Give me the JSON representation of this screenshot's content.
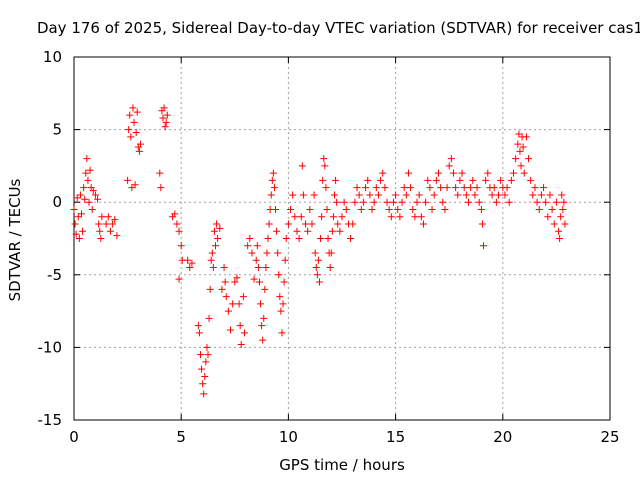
{
  "chart_data": {
    "type": "scatter",
    "title": "Day 176 of 2025, Sidereal Day-to-day VTEC variation (SDTVAR) for receiver cas1",
    "xlabel": "GPS time / hours",
    "ylabel": "SDTVAR / TECUs",
    "xlim": [
      0,
      25
    ],
    "ylim": [
      -15,
      10
    ],
    "xticks": [
      0,
      5,
      10,
      15,
      20,
      25
    ],
    "yticks": [
      -15,
      -10,
      -5,
      0,
      5,
      10
    ],
    "xtick_labels": [
      "0",
      "5",
      "10",
      "15",
      "20",
      "25"
    ],
    "ytick_labels": [
      "-15",
      "-10",
      "-5",
      "0",
      "5",
      "10"
    ],
    "grid": true,
    "marker": "+",
    "series": [
      {
        "name": "SDTVAR",
        "color": "#ff0000",
        "points": [
          [
            0.0,
            -0.5
          ],
          [
            0.05,
            -1.5
          ],
          [
            0.1,
            -2.2
          ],
          [
            0.15,
            0.3
          ],
          [
            0.2,
            -1.0
          ],
          [
            0.25,
            -2.5
          ],
          [
            0.3,
            0.5
          ],
          [
            0.35,
            -0.8
          ],
          [
            0.4,
            -2.0
          ],
          [
            0.45,
            1.0
          ],
          [
            0.5,
            0.2
          ],
          [
            0.55,
            2.0
          ],
          [
            0.6,
            3.0
          ],
          [
            0.65,
            1.5
          ],
          [
            0.7,
            0.0
          ],
          [
            0.75,
            2.2
          ],
          [
            0.8,
            1.0
          ],
          [
            0.85,
            -0.5
          ],
          [
            0.9,
            0.8
          ],
          [
            1.0,
            0.5
          ],
          [
            1.1,
            0.2
          ],
          [
            1.15,
            -1.5
          ],
          [
            1.2,
            -2.0
          ],
          [
            1.25,
            -2.5
          ],
          [
            1.3,
            -1.0
          ],
          [
            1.5,
            -1.5
          ],
          [
            1.6,
            -1.0
          ],
          [
            1.7,
            -2.0
          ],
          [
            1.8,
            -1.5
          ],
          [
            1.9,
            -1.2
          ],
          [
            2.0,
            -2.3
          ],
          [
            2.5,
            1.5
          ],
          [
            2.55,
            5.0
          ],
          [
            2.6,
            6.0
          ],
          [
            2.65,
            4.5
          ],
          [
            2.7,
            1.0
          ],
          [
            2.75,
            6.5
          ],
          [
            2.8,
            5.5
          ],
          [
            2.85,
            1.2
          ],
          [
            2.9,
            4.8
          ],
          [
            2.95,
            6.2
          ],
          [
            3.0,
            3.8
          ],
          [
            3.05,
            3.5
          ],
          [
            3.1,
            4.0
          ],
          [
            4.0,
            2.0
          ],
          [
            4.05,
            1.0
          ],
          [
            4.1,
            6.3
          ],
          [
            4.15,
            5.8
          ],
          [
            4.2,
            6.5
          ],
          [
            4.25,
            5.2
          ],
          [
            4.3,
            5.5
          ],
          [
            4.35,
            6.0
          ],
          [
            4.6,
            -1.0
          ],
          [
            4.7,
            -0.8
          ],
          [
            4.8,
            -1.5
          ],
          [
            4.9,
            -2.0
          ],
          [
            5.0,
            -3.0
          ],
          [
            5.05,
            -4.0
          ],
          [
            4.9,
            -5.3
          ],
          [
            5.3,
            -4.0
          ],
          [
            5.4,
            -4.5
          ],
          [
            5.5,
            -4.2
          ],
          [
            5.8,
            -8.5
          ],
          [
            5.85,
            -9.0
          ],
          [
            5.9,
            -10.5
          ],
          [
            5.95,
            -11.5
          ],
          [
            6.0,
            -12.5
          ],
          [
            6.05,
            -13.2
          ],
          [
            6.1,
            -12.0
          ],
          [
            6.15,
            -11.0
          ],
          [
            6.2,
            -10.0
          ],
          [
            6.25,
            -10.5
          ],
          [
            6.3,
            -8.0
          ],
          [
            6.35,
            -6.0
          ],
          [
            6.4,
            -4.0
          ],
          [
            6.45,
            -3.5
          ],
          [
            6.5,
            -4.5
          ],
          [
            6.55,
            -2.0
          ],
          [
            6.6,
            -3.0
          ],
          [
            6.65,
            -1.5
          ],
          [
            6.7,
            -2.5
          ],
          [
            6.8,
            -1.8
          ],
          [
            6.9,
            -6.0
          ],
          [
            7.0,
            -4.5
          ],
          [
            7.05,
            -5.5
          ],
          [
            7.1,
            -6.5
          ],
          [
            7.2,
            -7.5
          ],
          [
            7.3,
            -8.8
          ],
          [
            7.4,
            -7.0
          ],
          [
            7.5,
            -5.5
          ],
          [
            7.6,
            -5.2
          ],
          [
            7.7,
            -7.0
          ],
          [
            7.75,
            -8.5
          ],
          [
            7.8,
            -9.8
          ],
          [
            7.9,
            -6.5
          ],
          [
            7.95,
            -9.0
          ],
          [
            8.1,
            -3.0
          ],
          [
            8.2,
            -2.5
          ],
          [
            8.3,
            -3.5
          ],
          [
            8.4,
            -5.3
          ],
          [
            8.5,
            -4.0
          ],
          [
            8.55,
            -3.0
          ],
          [
            8.6,
            -4.5
          ],
          [
            8.65,
            -5.5
          ],
          [
            8.7,
            -7.0
          ],
          [
            8.75,
            -8.5
          ],
          [
            8.8,
            -9.5
          ],
          [
            8.85,
            -8.0
          ],
          [
            8.9,
            -6.0
          ],
          [
            8.95,
            -4.5
          ],
          [
            9.0,
            -3.5
          ],
          [
            9.05,
            -2.5
          ],
          [
            9.1,
            -1.5
          ],
          [
            9.15,
            -0.5
          ],
          [
            9.2,
            0.5
          ],
          [
            9.25,
            1.5
          ],
          [
            9.3,
            2.0
          ],
          [
            9.35,
            1.0
          ],
          [
            9.4,
            -0.5
          ],
          [
            9.45,
            -2.0
          ],
          [
            9.5,
            -3.5
          ],
          [
            9.55,
            -5.0
          ],
          [
            9.6,
            -6.5
          ],
          [
            9.65,
            -7.5
          ],
          [
            9.7,
            -9.0
          ],
          [
            9.75,
            -7.0
          ],
          [
            9.8,
            -5.5
          ],
          [
            9.85,
            -4.0
          ],
          [
            9.9,
            -2.5
          ],
          [
            10.0,
            -1.5
          ],
          [
            10.1,
            -0.5
          ],
          [
            10.2,
            0.5
          ],
          [
            10.3,
            -1.0
          ],
          [
            10.4,
            -2.0
          ],
          [
            10.5,
            -2.5
          ],
          [
            10.6,
            -1.0
          ],
          [
            10.65,
            2.5
          ],
          [
            10.7,
            0.5
          ],
          [
            10.8,
            -1.5
          ],
          [
            10.9,
            -2.0
          ],
          [
            11.0,
            -0.5
          ],
          [
            11.1,
            -1.5
          ],
          [
            11.2,
            0.5
          ],
          [
            11.25,
            -3.5
          ],
          [
            11.3,
            -4.5
          ],
          [
            11.35,
            -5.0
          ],
          [
            11.4,
            -4.0
          ],
          [
            11.45,
            -5.5
          ],
          [
            11.5,
            -2.5
          ],
          [
            11.55,
            -1.0
          ],
          [
            11.6,
            1.5
          ],
          [
            11.65,
            3.0
          ],
          [
            11.7,
            2.5
          ],
          [
            11.75,
            1.0
          ],
          [
            11.8,
            -0.5
          ],
          [
            11.85,
            -2.5
          ],
          [
            11.9,
            -3.5
          ],
          [
            11.95,
            -4.5
          ],
          [
            12.0,
            -3.5
          ],
          [
            12.05,
            -2.0
          ],
          [
            12.1,
            -1.0
          ],
          [
            12.15,
            0.5
          ],
          [
            12.2,
            1.5
          ],
          [
            12.25,
            0.0
          ],
          [
            12.3,
            -1.5
          ],
          [
            12.4,
            -2.0
          ],
          [
            12.5,
            -1.0
          ],
          [
            12.6,
            0.0
          ],
          [
            12.7,
            -0.5
          ],
          [
            12.8,
            -1.5
          ],
          [
            12.9,
            -2.5
          ],
          [
            13.0,
            -1.5
          ],
          [
            13.1,
            0.0
          ],
          [
            13.2,
            1.0
          ],
          [
            13.3,
            0.5
          ],
          [
            13.4,
            -0.5
          ],
          [
            13.5,
            0.0
          ],
          [
            13.6,
            1.0
          ],
          [
            13.7,
            1.5
          ],
          [
            13.8,
            0.5
          ],
          [
            13.9,
            -0.5
          ],
          [
            14.0,
            0.0
          ],
          [
            14.1,
            1.0
          ],
          [
            14.2,
            0.5
          ],
          [
            14.3,
            1.5
          ],
          [
            14.4,
            2.0
          ],
          [
            14.5,
            1.0
          ],
          [
            14.6,
            0.0
          ],
          [
            14.7,
            -0.5
          ],
          [
            14.8,
            -1.0
          ],
          [
            14.9,
            0.0
          ],
          [
            15.0,
            0.5
          ],
          [
            15.1,
            -0.5
          ],
          [
            15.2,
            -1.0
          ],
          [
            15.3,
            0.0
          ],
          [
            15.4,
            1.0
          ],
          [
            15.5,
            0.5
          ],
          [
            15.6,
            2.0
          ],
          [
            15.7,
            1.0
          ],
          [
            15.8,
            -0.5
          ],
          [
            15.9,
            -1.0
          ],
          [
            16.0,
            0.0
          ],
          [
            16.1,
            0.5
          ],
          [
            16.2,
            -1.0
          ],
          [
            16.3,
            -1.5
          ],
          [
            16.4,
            0.0
          ],
          [
            16.5,
            1.5
          ],
          [
            16.6,
            1.0
          ],
          [
            16.7,
            -0.5
          ],
          [
            16.8,
            0.5
          ],
          [
            16.9,
            1.5
          ],
          [
            17.0,
            2.0
          ],
          [
            17.1,
            1.0
          ],
          [
            17.2,
            0.0
          ],
          [
            17.3,
            -0.5
          ],
          [
            17.4,
            1.0
          ],
          [
            17.5,
            2.5
          ],
          [
            17.6,
            3.0
          ],
          [
            17.7,
            2.0
          ],
          [
            17.8,
            1.0
          ],
          [
            17.9,
            0.5
          ],
          [
            18.0,
            1.5
          ],
          [
            18.1,
            2.0
          ],
          [
            18.2,
            1.0
          ],
          [
            18.3,
            0.5
          ],
          [
            18.4,
            0.0
          ],
          [
            18.5,
            1.0
          ],
          [
            18.6,
            1.5
          ],
          [
            18.7,
            0.5
          ],
          [
            18.8,
            1.0
          ],
          [
            18.9,
            0.0
          ],
          [
            19.0,
            -0.5
          ],
          [
            19.05,
            -1.5
          ],
          [
            19.1,
            -3.0
          ],
          [
            19.2,
            1.5
          ],
          [
            19.3,
            2.0
          ],
          [
            19.4,
            1.0
          ],
          [
            19.5,
            0.5
          ],
          [
            19.6,
            1.0
          ],
          [
            19.7,
            0.0
          ],
          [
            19.8,
            0.5
          ],
          [
            19.9,
            1.5
          ],
          [
            20.0,
            1.0
          ],
          [
            20.1,
            0.5
          ],
          [
            20.2,
            1.0
          ],
          [
            20.3,
            0.0
          ],
          [
            20.4,
            1.5
          ],
          [
            20.5,
            2.0
          ],
          [
            20.6,
            3.0
          ],
          [
            20.7,
            4.0
          ],
          [
            20.75,
            4.7
          ],
          [
            20.8,
            3.5
          ],
          [
            20.85,
            2.5
          ],
          [
            20.9,
            4.5
          ],
          [
            20.95,
            3.8
          ],
          [
            21.0,
            2.0
          ],
          [
            21.1,
            4.5
          ],
          [
            21.2,
            3.0
          ],
          [
            21.3,
            1.5
          ],
          [
            21.4,
            0.5
          ],
          [
            21.5,
            1.0
          ],
          [
            21.6,
            0.0
          ],
          [
            21.7,
            -0.5
          ],
          [
            21.8,
            0.5
          ],
          [
            21.9,
            1.0
          ],
          [
            22.0,
            0.0
          ],
          [
            22.1,
            -1.0
          ],
          [
            22.2,
            0.5
          ],
          [
            22.3,
            -0.5
          ],
          [
            22.4,
            -1.5
          ],
          [
            22.5,
            0.0
          ],
          [
            22.6,
            -2.0
          ],
          [
            22.65,
            -2.5
          ],
          [
            22.7,
            -1.0
          ],
          [
            22.75,
            0.5
          ],
          [
            22.8,
            -0.5
          ],
          [
            22.85,
            0.0
          ],
          [
            22.9,
            -1.5
          ]
        ]
      }
    ]
  }
}
